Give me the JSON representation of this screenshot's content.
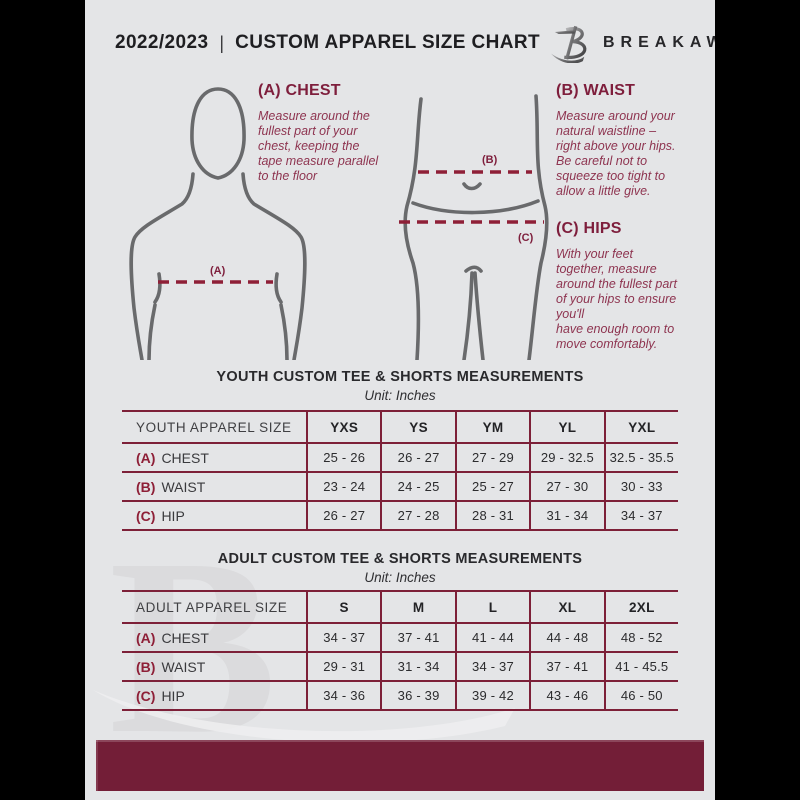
{
  "header": {
    "year": "2022/2023",
    "separator": "|",
    "title": "CUSTOM APPAREL SIZE CHART",
    "brand": "BREAKAWAY"
  },
  "diagram": {
    "marker_a": "(A)",
    "marker_b": "(B)",
    "marker_c": "(C)"
  },
  "instructions": [
    {
      "label": "(A) CHEST",
      "text": "Measure around the\nfullest part of your\nchest, keeping the\ntape measure parallel\nto the floor"
    },
    {
      "label": "(B) WAIST",
      "text": "Measure around your\nnatural waistline –\nright above your hips.\nBe careful not to\nsqueeze too tight to\nallow a little give."
    },
    {
      "label": "(C) HIPS",
      "text": "With your feet\ntogether, measure\naround the fullest part\nof your hips to ensure\nyou'll\nhave enough room to\nmove comfortably."
    }
  ],
  "youth_table": {
    "title": "YOUTH CUSTOM TEE & SHORTS MEASUREMENTS",
    "unit": "Unit: Inches",
    "header": [
      "YOUTH APPAREL SIZE",
      "YXS",
      "YS",
      "YM",
      "YL",
      "YXL"
    ],
    "rows": [
      {
        "prefix": "(A)",
        "label": "CHEST",
        "values": [
          "25 - 26",
          "26 - 27",
          "27 - 29",
          "29 - 32.5",
          "32.5 - 35.5"
        ]
      },
      {
        "prefix": "(B)",
        "label": "WAIST",
        "values": [
          "23 - 24",
          "24 - 25",
          "25 - 27",
          "27 - 30",
          "30 - 33"
        ]
      },
      {
        "prefix": "(C)",
        "label": "HIP",
        "values": [
          "26 - 27",
          "27 - 28",
          "28 - 31",
          "31 - 34",
          "34 - 37"
        ]
      }
    ]
  },
  "adult_table": {
    "title": "ADULT CUSTOM TEE & SHORTS MEASUREMENTS",
    "unit": "Unit: Inches",
    "header": [
      "ADULT APPAREL SIZE",
      "S",
      "M",
      "L",
      "XL",
      "2XL"
    ],
    "rows": [
      {
        "prefix": "(A)",
        "label": "CHEST",
        "values": [
          "34 - 37",
          "37 - 41",
          "41 - 44",
          "44 - 48",
          "48 - 52"
        ]
      },
      {
        "prefix": "(B)",
        "label": "WAIST",
        "values": [
          "29 - 31",
          "31 - 34",
          "34 - 37",
          "37 - 41",
          "41 - 45.5"
        ]
      },
      {
        "prefix": "(C)",
        "label": "HIP",
        "values": [
          "34 - 36",
          "36 - 39",
          "39 - 42",
          "43 - 46",
          "46 - 50"
        ]
      }
    ]
  },
  "watermark": {
    "glyph": "B"
  },
  "colors": {
    "maroon_line": "#7d2038",
    "maroon_heading": "#7e1e3c",
    "maroon_paragraph": "#8e3450",
    "footer_band": "#731e37",
    "document_bg": "#e4e5e7",
    "figure_outline": "#696a6c",
    "side_bars": "#000000"
  }
}
